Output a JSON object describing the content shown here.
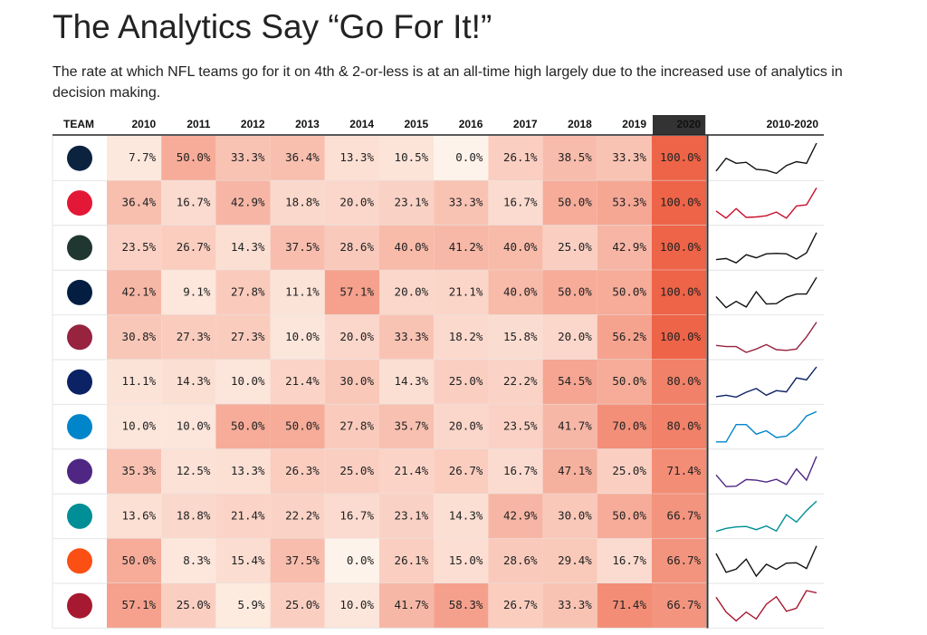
{
  "header": {
    "title": "The Analytics Say “Go For It!”",
    "subtitle_lines": [
      "The rate at which NFL teams go for it on 4th & 2-or-less is at an all-time high largely due to the increased use of analytics in",
      "decision making."
    ]
  },
  "table": {
    "columns": [
      "TEAM",
      "2010",
      "2011",
      "2012",
      "2013",
      "2014",
      "2015",
      "2016",
      "2017",
      "2018",
      "2019",
      "2020",
      "2010-2020"
    ],
    "rows": [
      {
        "logo_color": "#0c2340",
        "line_color": "#111111",
        "values": [
          7.7,
          50.0,
          33.3,
          36.4,
          13.3,
          10.5,
          0.0,
          26.1,
          38.5,
          33.3,
          100.0
        ],
        "labels": [
          "7.7%",
          "50.0%",
          "33.3%",
          "36.4%",
          "13.3%",
          "10.5%",
          "0.0%",
          "26.1%",
          "38.5%",
          "33.3%",
          "100.0%"
        ]
      },
      {
        "logo_color": "#e31837",
        "line_color": "#c8102e",
        "values": [
          36.4,
          16.7,
          42.9,
          18.8,
          20.0,
          23.1,
          33.3,
          16.7,
          50.0,
          53.3,
          100.0
        ],
        "labels": [
          "36.4%",
          "16.7%",
          "42.9%",
          "18.8%",
          "20.0%",
          "23.1%",
          "33.3%",
          "16.7%",
          "50.0%",
          "53.3%",
          "100.0%"
        ]
      },
      {
        "logo_color": "#203731",
        "line_color": "#111111",
        "values": [
          23.5,
          26.7,
          14.3,
          37.5,
          28.6,
          40.0,
          41.2,
          40.0,
          25.0,
          42.9,
          100.0
        ],
        "labels": [
          "23.5%",
          "26.7%",
          "14.3%",
          "37.5%",
          "28.6%",
          "40.0%",
          "41.2%",
          "40.0%",
          "25.0%",
          "42.9%",
          "100.0%"
        ]
      },
      {
        "logo_color": "#041e42",
        "line_color": "#111111",
        "values": [
          42.1,
          9.1,
          27.8,
          11.1,
          57.1,
          20.0,
          21.1,
          40.0,
          50.0,
          50.0,
          100.0
        ],
        "labels": [
          "42.1%",
          "9.1%",
          "27.8%",
          "11.1%",
          "57.1%",
          "20.0%",
          "21.1%",
          "40.0%",
          "50.0%",
          "50.0%",
          "100.0%"
        ]
      },
      {
        "logo_color": "#97233f",
        "line_color": "#97233f",
        "values": [
          30.8,
          27.3,
          27.3,
          10.0,
          20.0,
          33.3,
          18.2,
          15.8,
          20.0,
          56.2,
          100.0
        ],
        "labels": [
          "30.8%",
          "27.3%",
          "27.3%",
          "10.0%",
          "20.0%",
          "33.3%",
          "18.2%",
          "15.8%",
          "20.0%",
          "56.2%",
          "100.0%"
        ]
      },
      {
        "logo_color": "#0b2265",
        "line_color": "#0b2265",
        "values": [
          11.1,
          14.3,
          10.0,
          21.4,
          30.0,
          14.3,
          25.0,
          22.2,
          54.5,
          50.0,
          80.0
        ],
        "labels": [
          "11.1%",
          "14.3%",
          "10.0%",
          "21.4%",
          "30.0%",
          "14.3%",
          "25.0%",
          "22.2%",
          "54.5%",
          "50.0%",
          "80.0%"
        ]
      },
      {
        "logo_color": "#0085ca",
        "line_color": "#0085ca",
        "values": [
          10.0,
          10.0,
          50.0,
          50.0,
          27.8,
          35.7,
          20.0,
          23.5,
          41.7,
          70.0,
          80.0
        ],
        "labels": [
          "10.0%",
          "10.0%",
          "50.0%",
          "50.0%",
          "27.8%",
          "35.7%",
          "20.0%",
          "23.5%",
          "41.7%",
          "70.0%",
          "80.0%"
        ]
      },
      {
        "logo_color": "#4f2683",
        "line_color": "#4f2683",
        "values": [
          35.3,
          12.5,
          13.3,
          26.3,
          25.0,
          21.4,
          26.7,
          16.7,
          47.1,
          25.0,
          71.4
        ],
        "labels": [
          "35.3%",
          "12.5%",
          "13.3%",
          "26.3%",
          "25.0%",
          "21.4%",
          "26.7%",
          "16.7%",
          "47.1%",
          "25.0%",
          "71.4%"
        ]
      },
      {
        "logo_color": "#008e97",
        "line_color": "#008e97",
        "values": [
          13.6,
          18.8,
          21.4,
          22.2,
          16.7,
          23.1,
          14.3,
          42.9,
          30.0,
          50.0,
          66.7
        ],
        "labels": [
          "13.6%",
          "18.8%",
          "21.4%",
          "22.2%",
          "16.7%",
          "23.1%",
          "14.3%",
          "42.9%",
          "30.0%",
          "50.0%",
          "66.7%"
        ]
      },
      {
        "logo_color": "#fb4f14",
        "line_color": "#111111",
        "values": [
          50.0,
          8.3,
          15.4,
          37.5,
          0.0,
          26.1,
          15.0,
          28.6,
          29.4,
          16.7,
          66.7
        ],
        "labels": [
          "50.0%",
          "8.3%",
          "15.4%",
          "37.5%",
          "0.0%",
          "26.1%",
          "15.0%",
          "28.6%",
          "29.4%",
          "16.7%",
          "66.7%"
        ]
      },
      {
        "logo_color": "#a71930",
        "line_color": "#a71930",
        "values": [
          57.1,
          25.0,
          5.9,
          25.0,
          10.0,
          41.7,
          58.3,
          26.7,
          33.3,
          71.4,
          66.7
        ],
        "labels": [
          "57.1%",
          "25.0%",
          "5.9%",
          "25.0%",
          "10.0%",
          "41.7%",
          "58.3%",
          "26.7%",
          "33.3%",
          "71.4%",
          "66.7%"
        ]
      }
    ]
  }
}
